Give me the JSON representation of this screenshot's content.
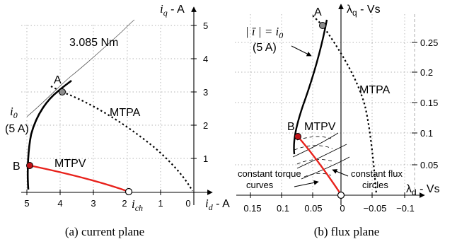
{
  "left_panel": {
    "y_axis_label": "i",
    "y_axis_label_sub": "q",
    "y_axis_label_unit": " - A",
    "x_axis_label": "i",
    "x_axis_label_sub": "d",
    "x_axis_label_unit": " - A",
    "x_ticks": [
      "5",
      "4",
      "3",
      "2",
      "1",
      "0"
    ],
    "y_ticks": [
      "1",
      "2",
      "3",
      "4",
      "5"
    ],
    "torque_label": "3.085 Nm",
    "point_a": "A",
    "point_b": "B",
    "mtpa_label": "MTPA",
    "mtpv_label": "MTPV",
    "current_limit_line1": "i",
    "current_limit_line1_sub": "0",
    "current_limit_line2": "(5 A)",
    "ich_label": "i",
    "ich_label_sub": "ch",
    "caption": "(a)  current plane"
  },
  "right_panel": {
    "y_axis_label": "λ",
    "y_axis_label_sub": "q",
    "y_axis_label_unit": " - Vs",
    "x_axis_label": "λ",
    "x_axis_label_sub": "d",
    "x_axis_label_unit": " - Vs",
    "x_ticks": [
      "0.15",
      "0.1",
      "0.05",
      "0",
      "−0.05",
      "−0.1"
    ],
    "y_ticks": [
      "0.05",
      "0.1",
      "0.15",
      "0.2",
      "0.25"
    ],
    "current_limit_line1": "| ī | = i",
    "current_limit_line1_sub": "0",
    "current_limit_line2": "(5 A)",
    "point_a": "A",
    "point_b": "B",
    "mtpa_label": "MTPA",
    "mtpv_label": "MTPV",
    "torque_curves_line1": "constant torque",
    "torque_curves_line2": "curves",
    "flux_circles_line1": "constant flux",
    "flux_circles_line2": "circles",
    "caption": "(b)  flux plane"
  },
  "colors": {
    "mtpv": "#e8211b",
    "point_a": "#8c8c8c",
    "point_b": "#c0141a",
    "axis": "#000000",
    "grid": "#9a9a9a"
  }
}
